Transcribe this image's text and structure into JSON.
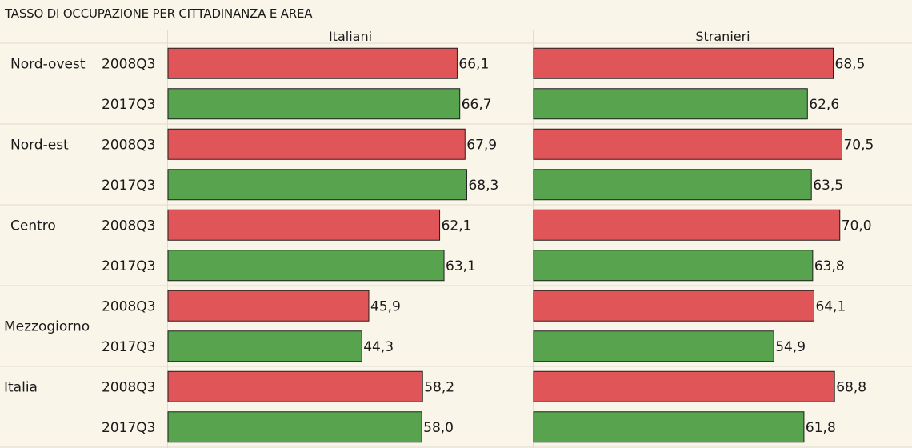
{
  "title": "TASSO DI OCCUPAZIONE PER CITTADINANZA E AREA",
  "colors": {
    "background": "#f9f5e8",
    "bar_2008Q3": "#e05558",
    "bar_2017Q3": "#58a34e",
    "bar_stroke": "#1f1f1f",
    "divider": "#e3dccb"
  },
  "chart_data": {
    "type": "bar",
    "orientation": "horizontal",
    "panels": [
      "Italiani",
      "Stranieri"
    ],
    "areas": [
      "Nord-ovest",
      "Nord-est",
      "Centro",
      "Mezzogiorno",
      "Italia"
    ],
    "periods": [
      "2008Q3",
      "2017Q3"
    ],
    "series": [
      {
        "name": "Italiani",
        "values": [
          [
            66.1,
            66.7
          ],
          [
            67.9,
            68.3
          ],
          [
            62.1,
            63.1
          ],
          [
            45.9,
            44.3
          ],
          [
            58.2,
            58.0
          ]
        ],
        "labels": [
          [
            "66,1",
            "66,7"
          ],
          [
            "67,9",
            "68,3"
          ],
          [
            "62,1",
            "63,1"
          ],
          [
            "45,9",
            "44,3"
          ],
          [
            "58,2",
            "58,0"
          ]
        ]
      },
      {
        "name": "Stranieri",
        "values": [
          [
            68.5,
            62.6
          ],
          [
            70.5,
            63.5
          ],
          [
            70.0,
            63.8
          ],
          [
            64.1,
            54.9
          ],
          [
            68.8,
            61.8
          ]
        ],
        "labels": [
          [
            "68,5",
            "62,6"
          ],
          [
            "70,5",
            "63,5"
          ],
          [
            "70,0",
            "63,8"
          ],
          [
            "64,1",
            "54,9"
          ],
          [
            "68,8",
            "61,8"
          ]
        ]
      }
    ],
    "xlim": [
      0,
      80
    ],
    "grid": false,
    "legend": "none"
  }
}
